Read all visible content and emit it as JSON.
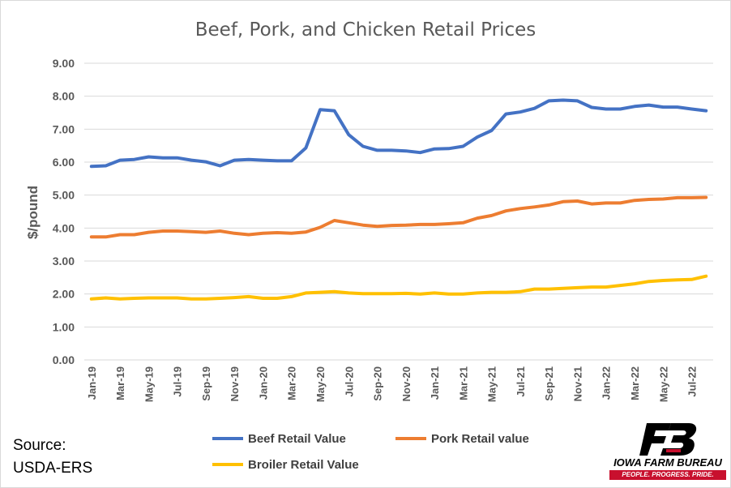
{
  "chart_data": {
    "type": "line",
    "title": "Beef, Pork, and Chicken Retail Prices",
    "ylabel": "$/pound",
    "xlabel": "",
    "ylim": [
      0,
      9
    ],
    "yticks": [
      "0.00",
      "1.00",
      "2.00",
      "3.00",
      "4.00",
      "5.00",
      "6.00",
      "7.00",
      "8.00",
      "9.00"
    ],
    "x_tick_labels": [
      "Jan-19",
      "Mar-19",
      "May-19",
      "Jul-19",
      "Sep-19",
      "Nov-19",
      "Jan-20",
      "Mar-20",
      "May-20",
      "Jul-20",
      "Sep-20",
      "Nov-20",
      "Jan-21",
      "Mar-21",
      "May-21",
      "Jul-21",
      "Sep-21",
      "Nov-21",
      "Jan-22",
      "Mar-22",
      "May-22",
      "Jul-22"
    ],
    "grid": true,
    "legend_position": "bottom",
    "series": [
      {
        "name": "Beef Retail Value",
        "color": "#4472c4",
        "values": [
          5.87,
          5.89,
          6.06,
          6.08,
          6.16,
          6.13,
          6.13,
          6.06,
          6.01,
          5.89,
          6.06,
          6.08,
          6.06,
          6.04,
          6.04,
          6.43,
          7.59,
          7.56,
          6.83,
          6.48,
          6.36,
          6.36,
          6.34,
          6.29,
          6.4,
          6.41,
          6.48,
          6.76,
          6.96,
          7.46,
          7.52,
          7.63,
          7.86,
          7.88,
          7.86,
          7.66,
          7.61,
          7.61,
          7.69,
          7.73,
          7.67,
          7.67,
          7.61,
          7.56
        ]
      },
      {
        "name": "Pork Retail value",
        "color": "#ed7d31",
        "values": [
          3.73,
          3.73,
          3.8,
          3.8,
          3.87,
          3.91,
          3.91,
          3.89,
          3.87,
          3.91,
          3.84,
          3.8,
          3.84,
          3.86,
          3.84,
          3.88,
          4.02,
          4.23,
          4.16,
          4.09,
          4.05,
          4.08,
          4.09,
          4.11,
          4.11,
          4.13,
          4.16,
          4.3,
          4.38,
          4.52,
          4.59,
          4.64,
          4.7,
          4.8,
          4.82,
          4.73,
          4.76,
          4.76,
          4.84,
          4.87,
          4.88,
          4.92,
          4.92,
          4.93
        ]
      },
      {
        "name": "Broiler Retail Value",
        "color": "#ffc000",
        "values": [
          1.85,
          1.88,
          1.85,
          1.87,
          1.88,
          1.88,
          1.88,
          1.85,
          1.85,
          1.87,
          1.89,
          1.92,
          1.87,
          1.87,
          1.92,
          2.03,
          2.05,
          2.07,
          2.03,
          2.01,
          2.01,
          2.01,
          2.02,
          2.0,
          2.03,
          2.0,
          2.0,
          2.03,
          2.05,
          2.05,
          2.07,
          2.15,
          2.15,
          2.17,
          2.19,
          2.21,
          2.21,
          2.26,
          2.31,
          2.38,
          2.41,
          2.43,
          2.44,
          2.54
        ]
      }
    ]
  },
  "source": {
    "line1": "Source:",
    "line2": "USDA-ERS"
  },
  "logo": {
    "name": "IOWA FARM BUREAU",
    "tagline": "PEOPLE. PROGRESS. PRIDE.",
    "icon": "iowa-farm-bureau-fb-logo-icon",
    "color": "#c8102e"
  }
}
